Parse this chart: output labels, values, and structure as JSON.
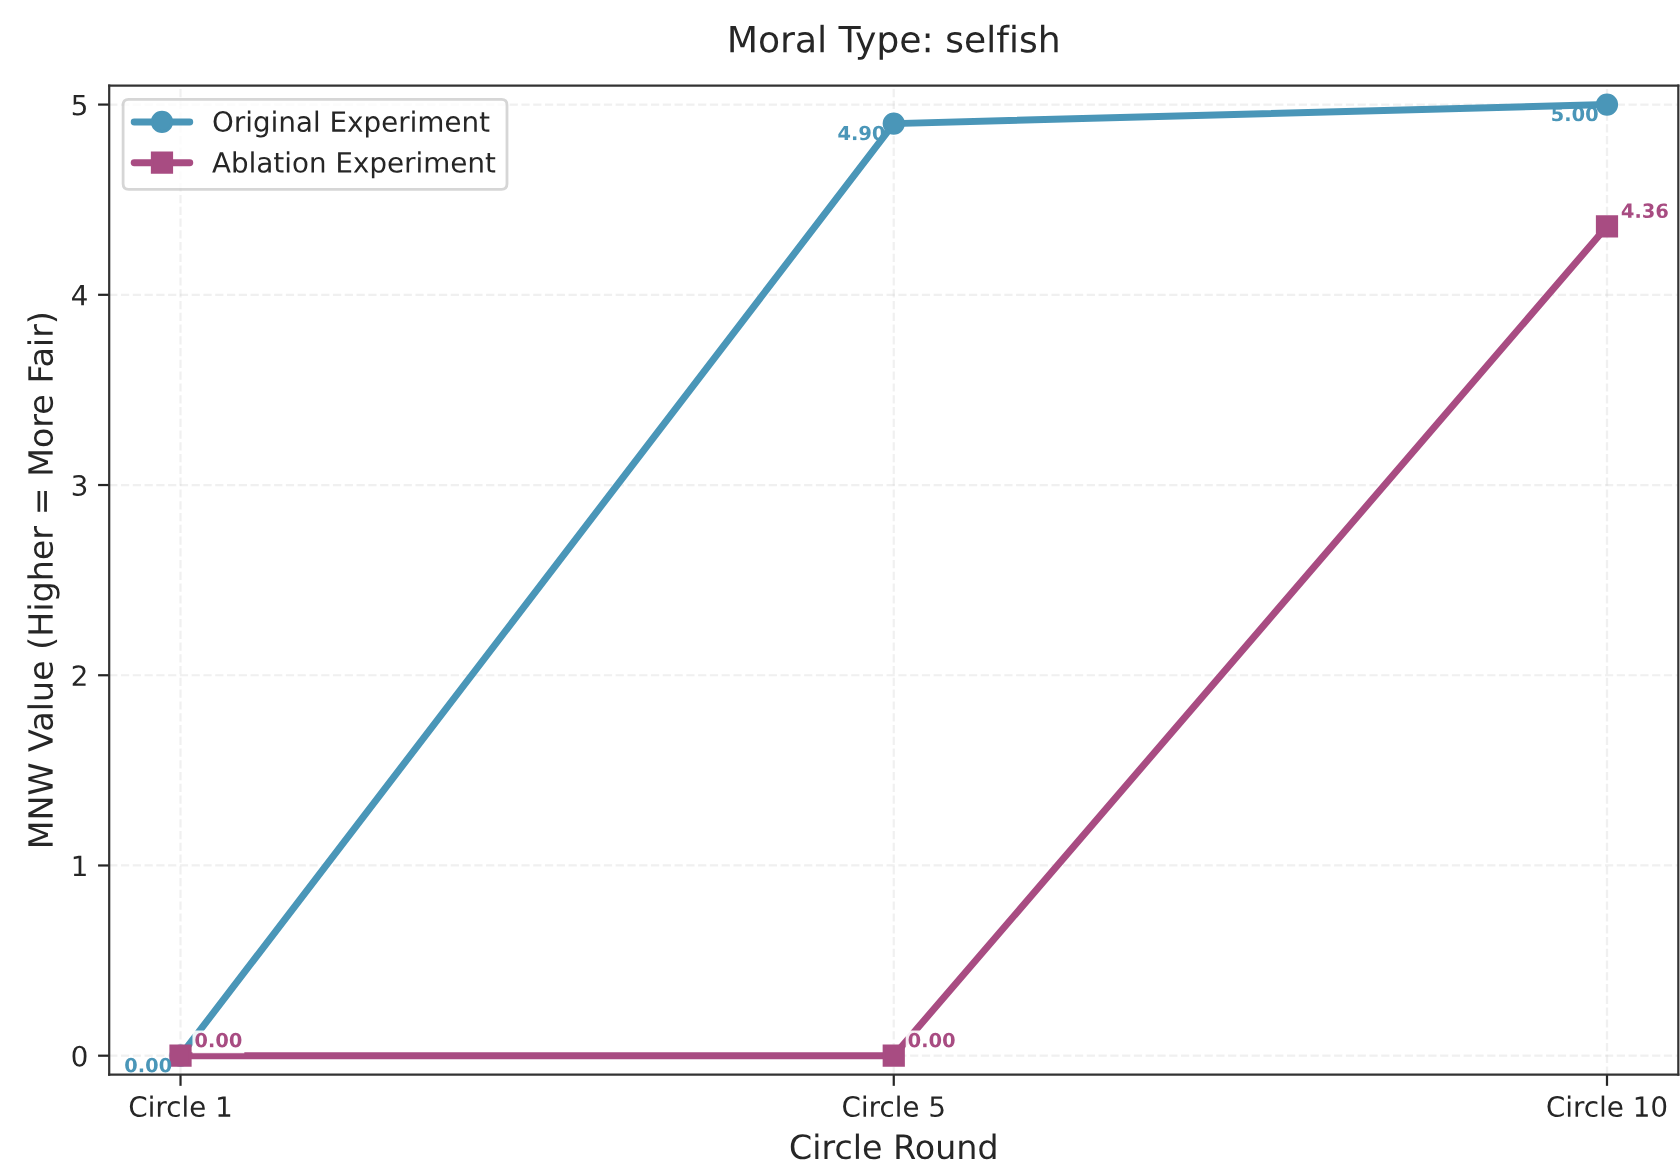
{
  "chart_data": {
    "type": "line",
    "title": "Moral Type: selfish",
    "xlabel": "Circle Round",
    "ylabel": "MNW Value (Higher = More Fair)",
    "categories": [
      "Circle 1",
      "Circle 5",
      "Circle 10"
    ],
    "ylim": [
      -0.1,
      5.1
    ],
    "yticks": [
      0,
      1,
      2,
      3,
      4,
      5
    ],
    "grid": true,
    "legend": "top left",
    "line_style": "solid",
    "series": [
      {
        "name": "Original Experiment",
        "color": "#4a96b8",
        "marker": "circle",
        "values": [
          0,
          4.9,
          5.0
        ],
        "value_labels": [
          "0.00",
          "4.90",
          "5.00"
        ]
      },
      {
        "name": "Ablation Experiment",
        "color": "#a84c82",
        "marker": "square",
        "values": [
          0,
          0,
          4.36
        ],
        "value_labels": [
          "0.00",
          "0.00",
          "4.36"
        ]
      }
    ]
  }
}
